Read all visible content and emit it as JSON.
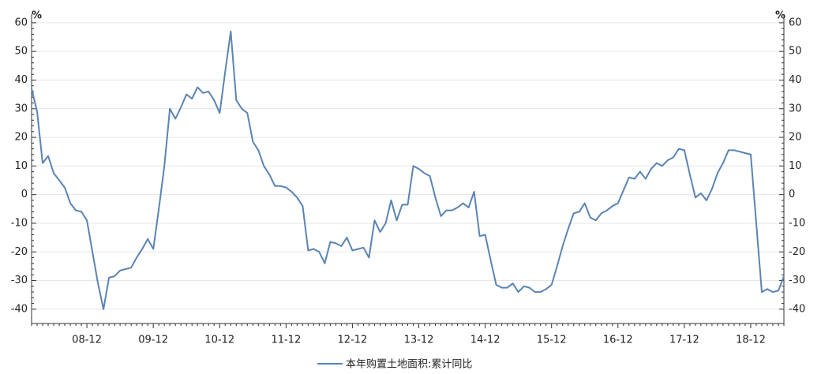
{
  "chart_data": {
    "type": "line",
    "y_unit": "%",
    "categories": [
      null,
      null,
      null,
      null,
      null,
      null,
      null,
      null,
      null,
      null,
      "08-12",
      null,
      null,
      null,
      null,
      null,
      null,
      null,
      null,
      null,
      null,
      null,
      "09-12",
      null,
      null,
      null,
      null,
      null,
      null,
      null,
      null,
      null,
      null,
      null,
      "10-12",
      null,
      null,
      null,
      null,
      null,
      null,
      null,
      null,
      null,
      null,
      null,
      "11-12",
      null,
      null,
      null,
      null,
      null,
      null,
      null,
      null,
      null,
      null,
      null,
      "12-12",
      null,
      null,
      null,
      null,
      null,
      null,
      null,
      null,
      null,
      null,
      null,
      "13-12",
      null,
      null,
      null,
      null,
      null,
      null,
      null,
      null,
      null,
      null,
      null,
      "14-12",
      null,
      null,
      null,
      null,
      null,
      null,
      null,
      null,
      null,
      null,
      null,
      "15-12",
      null,
      null,
      null,
      null,
      null,
      null,
      null,
      null,
      null,
      null,
      null,
      "16-12",
      null,
      null,
      null,
      null,
      null,
      null,
      null,
      null,
      null,
      null,
      null,
      "17-12",
      null,
      null,
      null,
      null,
      null,
      null,
      null,
      null,
      null,
      null,
      null,
      "18-12",
      null,
      null,
      null,
      null,
      null,
      null
    ],
    "series": [
      {
        "name": "本年购置土地面积:累计同比",
        "color": "#5a84b3",
        "values": [
          37,
          29,
          11,
          13.5,
          7.5,
          5,
          2.5,
          -3,
          -5.5,
          -6,
          -9,
          -20,
          -31,
          -40,
          -29,
          -28.5,
          -26.5,
          -26,
          -25.5,
          -22,
          -19,
          -15.5,
          -19,
          -5,
          10,
          30,
          26.5,
          30.5,
          35,
          33.5,
          37.5,
          35.5,
          36,
          33,
          28.5,
          43,
          57,
          33,
          30,
          28.5,
          18.5,
          15.5,
          10,
          7,
          3,
          3,
          2.5,
          1,
          -1,
          -4,
          -19.5,
          -19,
          -20,
          -24,
          -16.5,
          -17,
          -18,
          -15,
          -19.5,
          -19,
          -18.5,
          -22,
          -9,
          -13,
          -10,
          -2,
          -9,
          -3.5,
          -3.5,
          10,
          9,
          7.5,
          6.5,
          -1,
          -7.5,
          -5.5,
          -5.5,
          -4.5,
          -3,
          -4.5,
          1,
          -14.5,
          -14,
          -23,
          -31.5,
          -32.5,
          -32.5,
          -31,
          -34,
          -32,
          -32.5,
          -34,
          -34,
          -33,
          -31.5,
          -25,
          -18,
          -12,
          -6.5,
          -6,
          -3,
          -8,
          -9,
          -6.5,
          -5.5,
          -4,
          -3,
          1.5,
          6,
          5.5,
          8,
          5.5,
          9,
          11,
          10,
          12,
          13,
          16,
          15.5,
          7,
          -1,
          0.5,
          -2,
          2,
          7.5,
          11,
          15.5,
          15.5,
          15,
          14.5,
          14,
          -10,
          -34,
          -33,
          -34,
          -33.5,
          -28.5
        ]
      }
    ],
    "ylim": [
      -45,
      63
    ],
    "yticks": [
      -40,
      -30,
      -20,
      -10,
      0,
      10,
      20,
      30,
      40,
      50,
      60
    ],
    "y2lim": [
      -45,
      63
    ],
    "y2ticks": [
      -40,
      -30,
      -20,
      -10,
      0,
      10,
      20,
      30,
      40,
      50,
      60
    ],
    "grid": true,
    "legend": "bottom"
  }
}
